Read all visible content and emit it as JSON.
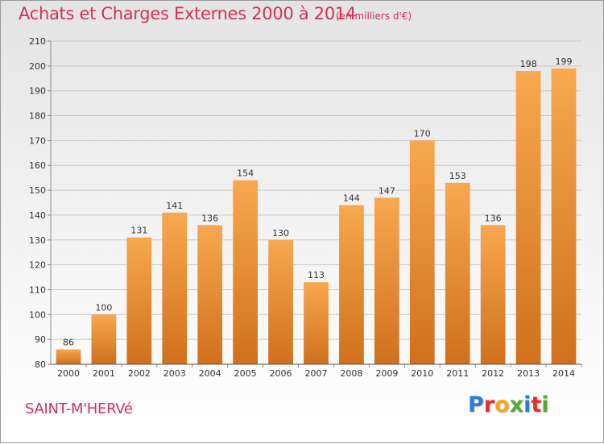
{
  "header": {
    "title": "Achats et Charges Externes 2000 à 2014",
    "subtitle": "(en milliers d'€)"
  },
  "footer": {
    "place": "SAINT-M'HERVé",
    "brand": "Proxiti",
    "brand_colors": [
      "#2e7bd6",
      "#e2312f",
      "#f5a623",
      "#5aa832",
      "#2e7bd6",
      "#e2312f",
      "#5aa832"
    ]
  },
  "colors": {
    "bar_light": "#f8a850",
    "bar_dark": "#d0701c",
    "grid": "#c9c9c9",
    "axis_text": "#333333",
    "accent": "#d3315a"
  },
  "chart_data": {
    "type": "bar",
    "categories": [
      "2000",
      "2001",
      "2002",
      "2003",
      "2004",
      "2005",
      "2006",
      "2007",
      "2008",
      "2009",
      "2010",
      "2011",
      "2012",
      "2013",
      "2014"
    ],
    "values": [
      86,
      100,
      131,
      141,
      136,
      154,
      130,
      113,
      144,
      147,
      170,
      153,
      136,
      198,
      199
    ],
    "title": "Achats et Charges Externes 2000 à 2014",
    "ylim": [
      80,
      210
    ],
    "yticks": [
      80,
      90,
      100,
      110,
      120,
      130,
      140,
      150,
      160,
      170,
      180,
      190,
      200,
      210
    ],
    "grid": true,
    "data_labels": true
  }
}
